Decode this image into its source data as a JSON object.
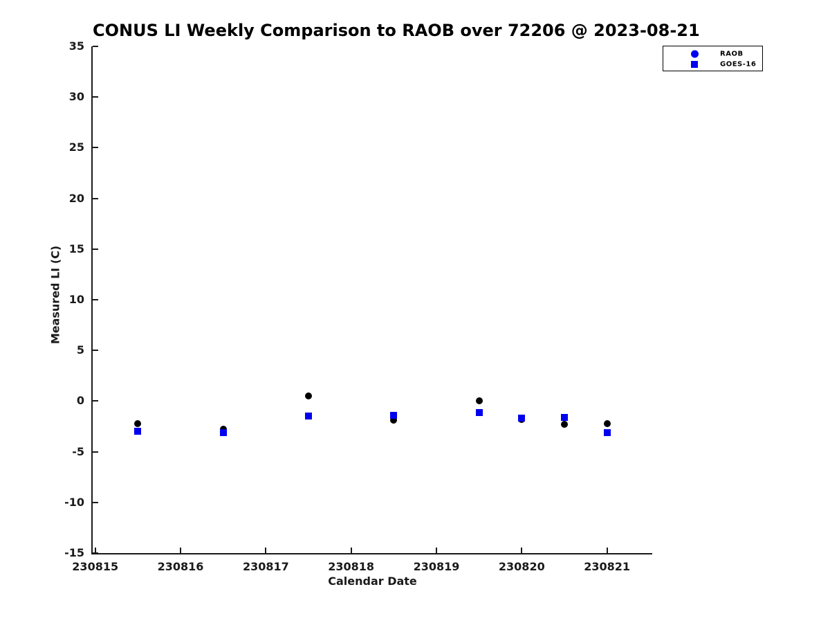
{
  "chart_data": {
    "type": "scatter",
    "title": "CONUS LI Weekly Comparison to RAOB over 72206 @ 2023-08-21",
    "xlabel": "Calendar Date",
    "ylabel": "Measured LI (C)",
    "xlim": [
      230814.97,
      230821.53
    ],
    "ylim": [
      -15,
      35
    ],
    "xticks": [
      230815,
      230816,
      230817,
      230818,
      230819,
      230820,
      230821
    ],
    "xtick_labels": [
      "230815",
      "230816",
      "230817",
      "230818",
      "230819",
      "230820",
      "230821"
    ],
    "yticks": [
      35,
      30,
      25,
      20,
      15,
      10,
      5,
      0,
      -5,
      -10,
      -15
    ],
    "grid": false,
    "legend_position": "top-right",
    "axis_color": "#1a1a1a",
    "series": [
      {
        "name": "RAOB",
        "marker": "circle",
        "color": "#000000",
        "legend_color": "#0000ee",
        "x": [
          230815.5,
          230816.5,
          230817.5,
          230818.5,
          230819.5,
          230820.0,
          230820.5,
          230821.0
        ],
        "y": [
          -2.2,
          -2.8,
          0.5,
          -1.9,
          0.0,
          -1.8,
          -2.3,
          -2.2
        ]
      },
      {
        "name": "GOES-16",
        "marker": "square",
        "color": "#0000ee",
        "legend_color": "#0000ee",
        "x": [
          230815.5,
          230816.5,
          230817.5,
          230818.5,
          230819.5,
          230820.0,
          230820.5,
          230821.0
        ],
        "y": [
          -3.0,
          -3.1,
          -1.5,
          -1.4,
          -1.1,
          -1.7,
          -1.6,
          -3.1
        ]
      }
    ]
  }
}
